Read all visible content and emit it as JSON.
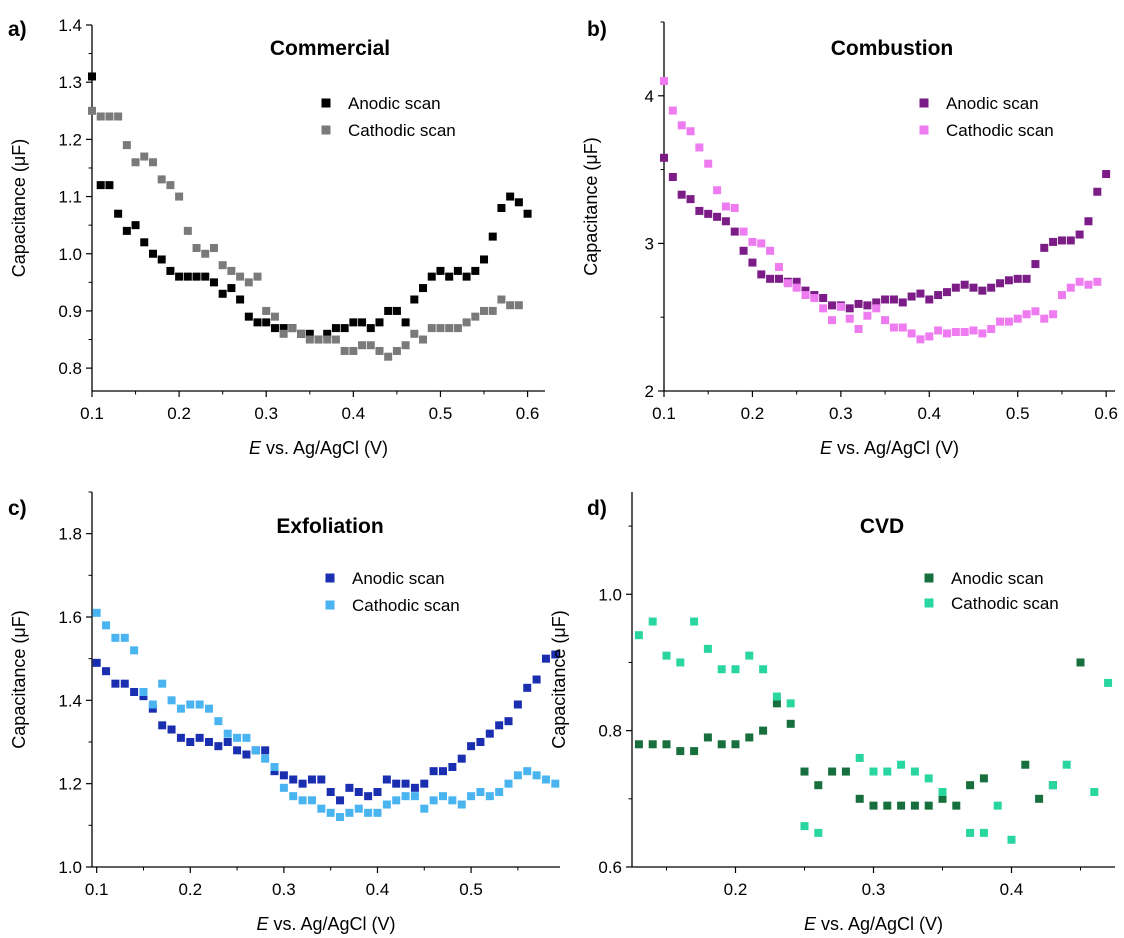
{
  "figure": {
    "panels": [
      {
        "letter": "a)",
        "title": "Commercial"
      },
      {
        "letter": "b)",
        "title": "Combustion"
      },
      {
        "letter": "c)",
        "title": "Exfoliation"
      },
      {
        "letter": "d)",
        "title": "CVD"
      }
    ]
  },
  "chart_data": [
    {
      "type": "scatter",
      "panel_label": "a)",
      "title": "Commercial",
      "xlabel_italic": "E",
      "xlabel_rest": " vs. Ag/AgCl (V)",
      "ylabel": "Capacitance (μF)",
      "xlim": [
        0.1,
        0.62
      ],
      "ylim": [
        0.76,
        1.4
      ],
      "xticks": [
        0.1,
        0.2,
        0.3,
        0.4,
        0.5,
        0.6
      ],
      "xtick_labels": [
        "0.1",
        "0.2",
        "0.3",
        "0.4",
        "0.5",
        "0.6"
      ],
      "yticks": [
        0.8,
        0.9,
        1.0,
        1.1,
        1.2,
        1.3,
        1.4
      ],
      "ytick_labels": [
        "0.8",
        "0.9",
        "1.0",
        "1.1",
        "1.2",
        "1.3",
        "1.4"
      ],
      "legend_position": "top-right",
      "grid": false,
      "series": [
        {
          "name": "Anodic scan",
          "color": "#000000",
          "x": [
            0.1,
            0.11,
            0.12,
            0.13,
            0.14,
            0.15,
            0.16,
            0.17,
            0.18,
            0.19,
            0.2,
            0.21,
            0.22,
            0.23,
            0.24,
            0.25,
            0.26,
            0.27,
            0.28,
            0.29,
            0.3,
            0.31,
            0.32,
            0.33,
            0.34,
            0.35,
            0.36,
            0.37,
            0.38,
            0.39,
            0.4,
            0.41,
            0.42,
            0.43,
            0.44,
            0.45,
            0.46,
            0.47,
            0.48,
            0.49,
            0.5,
            0.51,
            0.52,
            0.53,
            0.54,
            0.55,
            0.56,
            0.57,
            0.58,
            0.59,
            0.6
          ],
          "y": [
            1.31,
            1.12,
            1.12,
            1.07,
            1.04,
            1.05,
            1.02,
            1.0,
            0.99,
            0.97,
            0.96,
            0.96,
            0.96,
            0.96,
            0.95,
            0.93,
            0.94,
            0.92,
            0.89,
            0.88,
            0.88,
            0.87,
            0.87,
            0.87,
            0.86,
            0.86,
            0.85,
            0.86,
            0.87,
            0.87,
            0.88,
            0.88,
            0.87,
            0.88,
            0.9,
            0.9,
            0.88,
            0.92,
            0.94,
            0.96,
            0.97,
            0.96,
            0.97,
            0.96,
            0.97,
            0.99,
            1.03,
            1.08,
            1.1,
            1.09,
            1.07
          ]
        },
        {
          "name": "Cathodic scan",
          "color": "#7a7a7a",
          "x": [
            0.1,
            0.11,
            0.12,
            0.13,
            0.14,
            0.15,
            0.16,
            0.17,
            0.18,
            0.19,
            0.2,
            0.21,
            0.22,
            0.23,
            0.24,
            0.25,
            0.26,
            0.27,
            0.28,
            0.29,
            0.3,
            0.31,
            0.32,
            0.33,
            0.34,
            0.35,
            0.36,
            0.37,
            0.38,
            0.39,
            0.4,
            0.41,
            0.42,
            0.43,
            0.44,
            0.45,
            0.46,
            0.47,
            0.48,
            0.49,
            0.5,
            0.51,
            0.52,
            0.53,
            0.54,
            0.55,
            0.56,
            0.57,
            0.58,
            0.59
          ],
          "y": [
            1.25,
            1.24,
            1.24,
            1.24,
            1.19,
            1.16,
            1.17,
            1.16,
            1.13,
            1.12,
            1.1,
            1.04,
            1.01,
            1.0,
            1.01,
            0.98,
            0.97,
            0.96,
            0.95,
            0.96,
            0.9,
            0.89,
            0.86,
            0.87,
            0.86,
            0.85,
            0.85,
            0.85,
            0.85,
            0.83,
            0.83,
            0.84,
            0.84,
            0.83,
            0.82,
            0.83,
            0.84,
            0.86,
            0.85,
            0.87,
            0.87,
            0.87,
            0.87,
            0.88,
            0.89,
            0.9,
            0.9,
            0.92,
            0.91,
            0.91
          ]
        }
      ]
    },
    {
      "type": "scatter",
      "panel_label": "b)",
      "title": "Combustion",
      "xlabel_italic": "E",
      "xlabel_rest": " vs. Ag/AgCl (V)",
      "ylabel": "Capacitance (μF)",
      "xlim": [
        0.1,
        0.61
      ],
      "ylim": [
        2.0,
        4.5
      ],
      "xticks": [
        0.1,
        0.2,
        0.3,
        0.4,
        0.5,
        0.6
      ],
      "xtick_labels": [
        "0.1",
        "0.2",
        "0.3",
        "0.4",
        "0.5",
        "0.6"
      ],
      "yticks": [
        2,
        3,
        4
      ],
      "ytick_labels": [
        "2",
        "3",
        "4"
      ],
      "legend_position": "top-right",
      "grid": false,
      "series": [
        {
          "name": "Anodic scan",
          "color": "#7b1c87",
          "x": [
            0.1,
            0.11,
            0.12,
            0.13,
            0.14,
            0.15,
            0.16,
            0.17,
            0.18,
            0.19,
            0.2,
            0.21,
            0.22,
            0.23,
            0.24,
            0.25,
            0.26,
            0.27,
            0.28,
            0.29,
            0.3,
            0.31,
            0.32,
            0.33,
            0.34,
            0.35,
            0.36,
            0.37,
            0.38,
            0.39,
            0.4,
            0.41,
            0.42,
            0.43,
            0.44,
            0.45,
            0.46,
            0.47,
            0.48,
            0.49,
            0.5,
            0.51,
            0.52,
            0.53,
            0.54,
            0.55,
            0.56,
            0.57,
            0.58,
            0.59,
            0.6
          ],
          "y": [
            3.58,
            3.45,
            3.33,
            3.3,
            3.22,
            3.2,
            3.18,
            3.15,
            3.08,
            2.95,
            2.87,
            2.79,
            2.76,
            2.76,
            2.74,
            2.74,
            2.68,
            2.65,
            2.63,
            2.58,
            2.58,
            2.56,
            2.59,
            2.58,
            2.6,
            2.62,
            2.62,
            2.6,
            2.64,
            2.66,
            2.62,
            2.65,
            2.67,
            2.7,
            2.72,
            2.7,
            2.68,
            2.7,
            2.73,
            2.75,
            2.76,
            2.76,
            2.86,
            2.97,
            3.01,
            3.02,
            3.02,
            3.06,
            3.15,
            3.35,
            3.47
          ]
        },
        {
          "name": "Cathodic scan",
          "color": "#ee7cf0",
          "x": [
            0.1,
            0.11,
            0.12,
            0.13,
            0.14,
            0.15,
            0.16,
            0.17,
            0.18,
            0.19,
            0.2,
            0.21,
            0.22,
            0.23,
            0.24,
            0.25,
            0.26,
            0.27,
            0.28,
            0.29,
            0.3,
            0.31,
            0.32,
            0.33,
            0.34,
            0.35,
            0.36,
            0.37,
            0.38,
            0.39,
            0.4,
            0.41,
            0.42,
            0.43,
            0.44,
            0.45,
            0.46,
            0.47,
            0.48,
            0.49,
            0.5,
            0.51,
            0.52,
            0.53,
            0.54,
            0.55,
            0.56,
            0.57,
            0.58,
            0.59
          ],
          "y": [
            4.1,
            3.9,
            3.8,
            3.76,
            3.65,
            3.54,
            3.36,
            3.25,
            3.24,
            3.08,
            3.01,
            3.0,
            2.95,
            2.84,
            2.73,
            2.7,
            2.65,
            2.63,
            2.56,
            2.48,
            2.57,
            2.49,
            2.42,
            2.51,
            2.56,
            2.48,
            2.43,
            2.43,
            2.39,
            2.35,
            2.37,
            2.41,
            2.39,
            2.4,
            2.4,
            2.41,
            2.39,
            2.42,
            2.47,
            2.47,
            2.49,
            2.52,
            2.54,
            2.49,
            2.52,
            2.65,
            2.7,
            2.74,
            2.72,
            2.74
          ]
        }
      ]
    },
    {
      "type": "scatter",
      "panel_label": "c)",
      "title": "Exfoliation",
      "xlabel_italic": "E",
      "xlabel_rest": " vs. Ag/AgCl (V)",
      "ylabel": "Capacitance (μF)",
      "xlim": [
        0.095,
        0.595
      ],
      "ylim": [
        1.0,
        1.9
      ],
      "xticks": [
        0.1,
        0.2,
        0.3,
        0.4,
        0.5
      ],
      "xtick_labels": [
        "0.1",
        "0.2",
        "0.3",
        "0.4",
        "0.5"
      ],
      "yticks": [
        1.0,
        1.2,
        1.4,
        1.6,
        1.8
      ],
      "ytick_labels": [
        "1.0",
        "1.2",
        "1.4",
        "1.6",
        "1.8"
      ],
      "legend_position": "top-right",
      "grid": false,
      "series": [
        {
          "name": "Anodic scan",
          "color": "#1a2fb0",
          "x": [
            0.1,
            0.11,
            0.12,
            0.13,
            0.14,
            0.15,
            0.16,
            0.17,
            0.18,
            0.19,
            0.2,
            0.21,
            0.22,
            0.23,
            0.24,
            0.25,
            0.26,
            0.27,
            0.28,
            0.29,
            0.3,
            0.31,
            0.32,
            0.33,
            0.34,
            0.35,
            0.36,
            0.37,
            0.38,
            0.39,
            0.4,
            0.41,
            0.42,
            0.43,
            0.44,
            0.45,
            0.46,
            0.47,
            0.48,
            0.49,
            0.5,
            0.51,
            0.52,
            0.53,
            0.54,
            0.55,
            0.56,
            0.57,
            0.58,
            0.59
          ],
          "y": [
            1.49,
            1.47,
            1.44,
            1.44,
            1.42,
            1.41,
            1.38,
            1.34,
            1.33,
            1.31,
            1.3,
            1.31,
            1.3,
            1.29,
            1.3,
            1.28,
            1.27,
            1.28,
            1.28,
            1.23,
            1.22,
            1.21,
            1.2,
            1.21,
            1.21,
            1.18,
            1.16,
            1.19,
            1.18,
            1.17,
            1.18,
            1.21,
            1.2,
            1.2,
            1.19,
            1.2,
            1.23,
            1.23,
            1.24,
            1.26,
            1.29,
            1.3,
            1.32,
            1.34,
            1.35,
            1.39,
            1.43,
            1.45,
            1.5,
            1.51
          ]
        },
        {
          "name": "Cathodic scan",
          "color": "#4ab4f0",
          "x": [
            0.1,
            0.11,
            0.12,
            0.13,
            0.14,
            0.15,
            0.16,
            0.17,
            0.18,
            0.19,
            0.2,
            0.21,
            0.22,
            0.23,
            0.24,
            0.25,
            0.26,
            0.27,
            0.28,
            0.29,
            0.3,
            0.31,
            0.32,
            0.33,
            0.34,
            0.35,
            0.36,
            0.37,
            0.38,
            0.39,
            0.4,
            0.41,
            0.42,
            0.43,
            0.44,
            0.45,
            0.46,
            0.47,
            0.48,
            0.49,
            0.5,
            0.51,
            0.52,
            0.53,
            0.54,
            0.55,
            0.56,
            0.57,
            0.58,
            0.59
          ],
          "y": [
            1.61,
            1.58,
            1.55,
            1.55,
            1.52,
            1.42,
            1.39,
            1.44,
            1.4,
            1.38,
            1.39,
            1.39,
            1.38,
            1.35,
            1.32,
            1.31,
            1.31,
            1.28,
            1.26,
            1.24,
            1.19,
            1.17,
            1.16,
            1.16,
            1.14,
            1.13,
            1.12,
            1.13,
            1.14,
            1.13,
            1.13,
            1.15,
            1.16,
            1.17,
            1.17,
            1.14,
            1.16,
            1.17,
            1.16,
            1.15,
            1.17,
            1.18,
            1.17,
            1.18,
            1.2,
            1.22,
            1.23,
            1.22,
            1.21,
            1.2
          ]
        }
      ]
    },
    {
      "type": "scatter",
      "panel_label": "d)",
      "title": "CVD",
      "xlabel_italic": "E",
      "xlabel_rest": " vs. Ag/AgCl (V)",
      "ylabel": "Capacitance (μF)",
      "xlim": [
        0.125,
        0.475
      ],
      "ylim": [
        0.6,
        1.15
      ],
      "xticks": [
        0.2,
        0.3,
        0.4
      ],
      "xtick_labels": [
        "0.2",
        "0.3",
        "0.4"
      ],
      "yticks": [
        0.6,
        0.8,
        1.0
      ],
      "ytick_labels": [
        "0.6",
        "0.8",
        "1.0"
      ],
      "legend_position": "top-right",
      "grid": false,
      "series": [
        {
          "name": "Anodic scan",
          "color": "#166f3c",
          "x": [
            0.13,
            0.14,
            0.15,
            0.16,
            0.17,
            0.18,
            0.19,
            0.2,
            0.21,
            0.22,
            0.23,
            0.24,
            0.25,
            0.26,
            0.27,
            0.28,
            0.29,
            0.3,
            0.31,
            0.32,
            0.33,
            0.34,
            0.35,
            0.36,
            0.37,
            0.38,
            0.41,
            0.42,
            0.43,
            0.45
          ],
          "y": [
            0.78,
            0.78,
            0.78,
            0.77,
            0.77,
            0.79,
            0.78,
            0.78,
            0.79,
            0.8,
            0.84,
            0.81,
            0.74,
            0.72,
            0.74,
            0.74,
            0.7,
            0.69,
            0.69,
            0.69,
            0.69,
            0.69,
            0.7,
            0.69,
            0.72,
            0.73,
            0.75,
            0.7,
            0.72,
            0.9
          ]
        },
        {
          "name": "Cathodic scan",
          "color": "#2ad6a0",
          "x": [
            0.13,
            0.14,
            0.15,
            0.16,
            0.17,
            0.18,
            0.19,
            0.2,
            0.21,
            0.22,
            0.23,
            0.24,
            0.25,
            0.26,
            0.29,
            0.3,
            0.31,
            0.32,
            0.33,
            0.34,
            0.35,
            0.37,
            0.38,
            0.39,
            0.4,
            0.43,
            0.44,
            0.46,
            0.47
          ],
          "y": [
            0.94,
            0.96,
            0.91,
            0.9,
            0.96,
            0.92,
            0.89,
            0.89,
            0.91,
            0.89,
            0.85,
            0.84,
            0.66,
            0.65,
            0.76,
            0.74,
            0.74,
            0.75,
            0.74,
            0.73,
            0.71,
            0.65,
            0.65,
            0.69,
            0.64,
            0.72,
            0.75,
            0.71,
            0.87
          ]
        }
      ]
    }
  ]
}
